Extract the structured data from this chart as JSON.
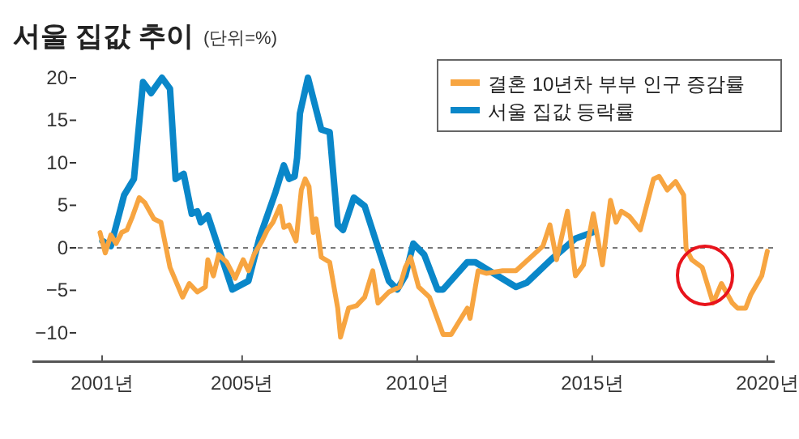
{
  "chart_data": {
    "type": "line",
    "title": "서울 집값 추이",
    "subtitle": "(단위=%)",
    "xlim": [
      1999.01,
      2020.21
    ],
    "ylim": [
      -13.4,
      20
    ],
    "xticks": [
      {
        "value": 2001,
        "label": "2001년"
      },
      {
        "value": 2005,
        "label": "2005년"
      },
      {
        "value": 2010,
        "label": "2010년"
      },
      {
        "value": 2015,
        "label": "2015년"
      },
      {
        "value": 2020,
        "label": "2020년"
      }
    ],
    "yticks": [
      {
        "value": -10,
        "label": "−10"
      },
      {
        "value": -5,
        "label": "−5"
      },
      0,
      5,
      10,
      15,
      20
    ],
    "grid": false,
    "legend": "top right",
    "marker": "none",
    "line_style": "solid",
    "ref_lines": [
      {
        "axis": "y",
        "value": 0,
        "label": null,
        "color": "#777777",
        "line_style": "dashed"
      }
    ],
    "series": [
      {
        "name": "결혼 10년차 부부 인구 증감률",
        "color": "#f7a541",
        "x": [
          2000.94,
          2001.09,
          2001.25,
          2001.4,
          2001.56,
          2001.71,
          2001.87,
          2002.06,
          2002.22,
          2002.48,
          2002.68,
          2002.94,
          2003.3,
          2003.49,
          2003.72,
          2003.95,
          2004.02,
          2004.18,
          2004.33,
          2004.56,
          2004.8,
          2005.03,
          2005.18,
          2005.34,
          2005.57,
          2005.72,
          2005.88,
          2006.08,
          2006.19,
          2006.34,
          2006.54,
          2006.69,
          2006.8,
          2006.91,
          2007.03,
          2007.11,
          2007.26,
          2007.5,
          2007.73,
          2007.81,
          2008.04,
          2008.27,
          2008.5,
          2008.73,
          2008.88,
          2009.19,
          2009.5,
          2009.66,
          2009.81,
          2010.04,
          2010.35,
          2010.74,
          2010.97,
          2011.43,
          2011.51,
          2011.74,
          2011.97,
          2012.44,
          2012.82,
          2013.59,
          2013.79,
          2013.98,
          2014.29,
          2014.52,
          2014.75,
          2015.03,
          2015.29,
          2015.52,
          2015.68,
          2015.83,
          2016.06,
          2016.37,
          2016.75,
          2016.91,
          2017.14,
          2017.38,
          2017.61,
          2017.68,
          2017.84,
          2018.14,
          2018.45,
          2018.69,
          2019.0,
          2019.15,
          2019.38,
          2019.53,
          2019.84,
          2020.0
        ],
        "values": [
          1.8,
          -0.6,
          1.5,
          0.5,
          1.8,
          2.1,
          3.7,
          5.9,
          5.3,
          3.4,
          3,
          -2.3,
          -5.8,
          -4.2,
          -5.2,
          -4.6,
          -1.4,
          -3.3,
          -0.8,
          -1.7,
          -3.6,
          -1.4,
          -2.7,
          -0.8,
          0.8,
          2.1,
          3,
          4.9,
          2.4,
          2.7,
          0.8,
          6.8,
          8.1,
          7.2,
          1.8,
          3.4,
          -1.1,
          -1.7,
          -7.1,
          -10.5,
          -7.1,
          -6.8,
          -5.8,
          -2.7,
          -6.5,
          -5.2,
          -4.6,
          -2.3,
          -1.1,
          -4.6,
          -5.8,
          -10.2,
          -10.2,
          -7.1,
          -8.3,
          -2.7,
          -3,
          -2.7,
          -2.7,
          0.2,
          2.7,
          -1.4,
          4.3,
          -3.3,
          -2,
          4,
          -2,
          5.6,
          3,
          4.3,
          3.7,
          2.1,
          8.1,
          8.4,
          6.8,
          7.8,
          6.2,
          -0.1,
          -1.4,
          -2.3,
          -6.5,
          -4.2,
          -6.5,
          -7.1,
          -7.1,
          -5.5,
          -3.3,
          -0.4
        ]
      },
      {
        "name": "서울 집값 등락률",
        "color": "#0a87c9",
        "x": [
          2001.01,
          2001.25,
          2001.63,
          2001.91,
          2002.17,
          2002.4,
          2002.71,
          2002.94,
          2003.1,
          2003.33,
          2003.56,
          2003.72,
          2003.82,
          2004.02,
          2004.72,
          2005.18,
          2005.49,
          2005.95,
          2006.19,
          2006.34,
          2006.5,
          2006.57,
          2006.65,
          2006.88,
          2007.26,
          2007.5,
          2007.73,
          2007.88,
          2008.19,
          2008.5,
          2009.19,
          2009.43,
          2009.66,
          2009.89,
          2010.2,
          2010.58,
          2010.74,
          2011.43,
          2011.66,
          2012.82,
          2013.13,
          2013.82,
          2014.52,
          2015.06
        ],
        "values": [
          0.8,
          0.2,
          6.2,
          8.1,
          19.5,
          18.2,
          20,
          18.7,
          8.1,
          8.7,
          4,
          4.3,
          3,
          3.8,
          -4.9,
          -3.9,
          1.1,
          6.5,
          9.7,
          8.1,
          8.4,
          10.6,
          15.8,
          20,
          13.9,
          13.6,
          2.7,
          2.1,
          5.9,
          4.9,
          -3.9,
          -4.9,
          -3.3,
          0.5,
          -0.8,
          -4.9,
          -4.9,
          -1.7,
          -1.7,
          -4.6,
          -4.1,
          -1.4,
          1.1,
          1.9
        ]
      }
    ]
  }
}
